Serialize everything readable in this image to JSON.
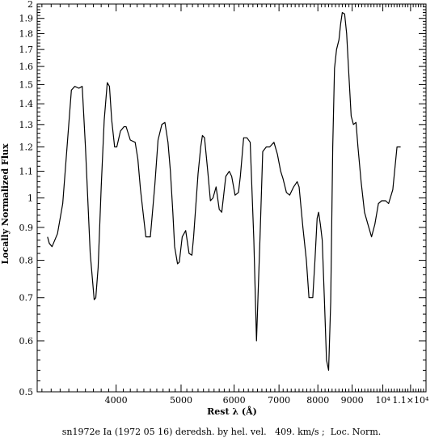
{
  "chart_data": {
    "type": "line",
    "title": "",
    "xlabel": "Rest λ (Å)",
    "ylabel": "Locally Normalized Flux",
    "xscale": "log",
    "yscale": "log",
    "xlim": [
      3050,
      11600
    ],
    "ylim": [
      0.5,
      2.0
    ],
    "grid": false,
    "x_ticks": [
      {
        "value": 4000,
        "label": "4000"
      },
      {
        "value": 5000,
        "label": "5000"
      },
      {
        "value": 6000,
        "label": "6000"
      },
      {
        "value": 7000,
        "label": "7000"
      },
      {
        "value": 8000,
        "label": "8000"
      },
      {
        "value": 9000,
        "label": "9000"
      },
      {
        "value": 10000,
        "label": "10⁴"
      },
      {
        "value": 11000,
        "label": "1.1×10⁴"
      }
    ],
    "y_ticks": [
      {
        "value": 0.5,
        "label": "0.5"
      },
      {
        "value": 0.6,
        "label": "0.6"
      },
      {
        "value": 0.7,
        "label": "0.7"
      },
      {
        "value": 0.8,
        "label": "0.8"
      },
      {
        "value": 0.9,
        "label": "0.9"
      },
      {
        "value": 1.0,
        "label": "1"
      },
      {
        "value": 1.1,
        "label": "1.1"
      },
      {
        "value": 1.2,
        "label": "1.2"
      },
      {
        "value": 1.3,
        "label": "1.3"
      },
      {
        "value": 1.4,
        "label": "1.4"
      },
      {
        "value": 1.5,
        "label": "1.5"
      },
      {
        "value": 1.6,
        "label": "1.6"
      },
      {
        "value": 1.7,
        "label": "1.7"
      },
      {
        "value": 1.8,
        "label": "1.8"
      },
      {
        "value": 1.9,
        "label": "1.9"
      },
      {
        "value": 2.0,
        "label": "2"
      }
    ],
    "series": [
      {
        "color": "#000000",
        "x": [
          3160,
          3180,
          3210,
          3270,
          3330,
          3430,
          3470,
          3520,
          3560,
          3600,
          3660,
          3710,
          3730,
          3760,
          3800,
          3840,
          3880,
          3910,
          3940,
          3980,
          4010,
          4060,
          4110,
          4140,
          4200,
          4270,
          4310,
          4350,
          4430,
          4500,
          4570,
          4620,
          4680,
          4730,
          4780,
          4820,
          4860,
          4890,
          4940,
          4970,
          5020,
          5080,
          5140,
          5190,
          5220,
          5300,
          5350,
          5380,
          5420,
          5480,
          5530,
          5580,
          5640,
          5700,
          5750,
          5830,
          5900,
          5950,
          6020,
          6090,
          6130,
          6200,
          6270,
          6340,
          6420,
          6480,
          6560,
          6620,
          6700,
          6780,
          6880,
          6960,
          7040,
          7100,
          7180,
          7260,
          7360,
          7450,
          7500,
          7600,
          7690,
          7760,
          7860,
          7920,
          7980,
          8020,
          8070,
          8120,
          8180,
          8240,
          8300,
          8360,
          8420,
          8470,
          8530,
          8600,
          8650,
          8700,
          8770,
          8830,
          8900,
          8970,
          9040,
          9120,
          9180,
          9280,
          9390,
          9500,
          9620,
          9730,
          9850,
          9960,
          10100,
          10200,
          10350,
          10500,
          10630
        ],
        "y": [
          0.87,
          0.85,
          0.84,
          0.88,
          0.98,
          1.47,
          1.49,
          1.48,
          1.49,
          1.2,
          0.82,
          0.695,
          0.7,
          0.78,
          1.04,
          1.32,
          1.51,
          1.49,
          1.32,
          1.2,
          1.2,
          1.27,
          1.29,
          1.29,
          1.23,
          1.22,
          1.15,
          1.03,
          0.87,
          0.87,
          1.05,
          1.23,
          1.3,
          1.31,
          1.22,
          1.1,
          0.95,
          0.84,
          0.79,
          0.795,
          0.87,
          0.89,
          0.82,
          0.815,
          0.87,
          1.09,
          1.2,
          1.25,
          1.24,
          1.1,
          0.99,
          1.0,
          1.04,
          0.96,
          0.95,
          1.08,
          1.1,
          1.08,
          1.01,
          1.02,
          1.08,
          1.24,
          1.24,
          1.22,
          0.86,
          0.6,
          0.88,
          1.18,
          1.2,
          1.2,
          1.22,
          1.17,
          1.1,
          1.07,
          1.02,
          1.01,
          1.04,
          1.06,
          1.04,
          0.9,
          0.8,
          0.7,
          0.7,
          0.8,
          0.93,
          0.95,
          0.91,
          0.86,
          0.7,
          0.56,
          0.54,
          0.69,
          1.2,
          1.59,
          1.7,
          1.76,
          1.86,
          1.94,
          1.93,
          1.8,
          1.55,
          1.34,
          1.3,
          1.31,
          1.2,
          1.06,
          0.95,
          0.91,
          0.87,
          0.91,
          0.98,
          0.99,
          0.99,
          0.98,
          1.03,
          1.2,
          1.2
        ]
      }
    ]
  },
  "caption": {
    "text": "sn1972e Ia (1972 05 16) deredsh. by hel. vel.   409. km/s ;  Loc. Norm."
  }
}
